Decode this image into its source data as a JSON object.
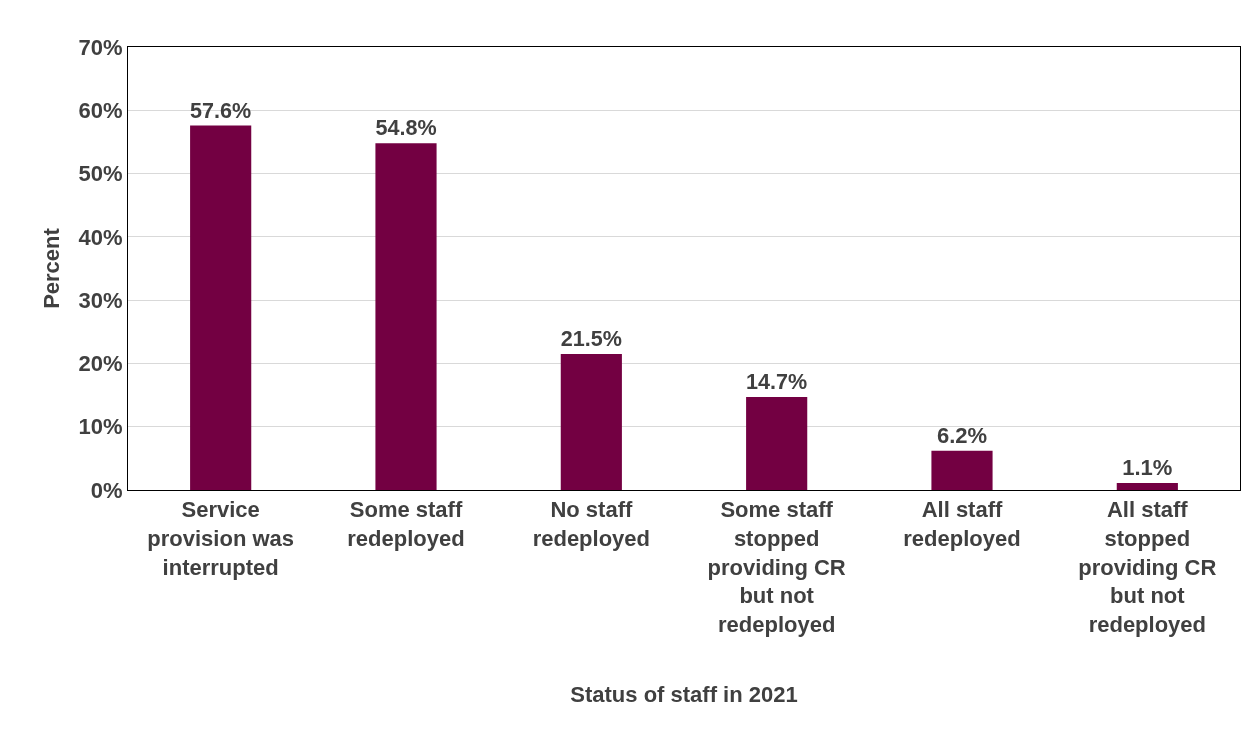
{
  "chart_data": {
    "type": "bar",
    "xlabel": "Status of staff in 2021",
    "ylabel": "Percent",
    "categories": [
      "Service provision was interrupted",
      "Some staff redeployed",
      "No staff redeployed",
      "Some staff stopped providing CR but not redeployed",
      "All staff redeployed",
      "All staff stopped providing CR but not redeployed"
    ],
    "values": [
      57.6,
      54.8,
      21.5,
      14.7,
      6.2,
      1.1
    ],
    "value_labels": [
      "57.6%",
      "54.8%",
      "21.5%",
      "14.7%",
      "6.2%",
      "1.1%"
    ],
    "color": "#730042",
    "ylim": [
      0,
      70
    ],
    "yticks": [
      {
        "value": 0,
        "label": "0%"
      },
      {
        "value": 10,
        "label": "10%"
      },
      {
        "value": 20,
        "label": "20%"
      },
      {
        "value": 30,
        "label": "30%"
      },
      {
        "value": 40,
        "label": "40%"
      },
      {
        "value": 50,
        "label": "50%"
      },
      {
        "value": 60,
        "label": "60%"
      },
      {
        "value": 70,
        "label": "70%"
      }
    ],
    "grid": "y",
    "legend": false
  }
}
